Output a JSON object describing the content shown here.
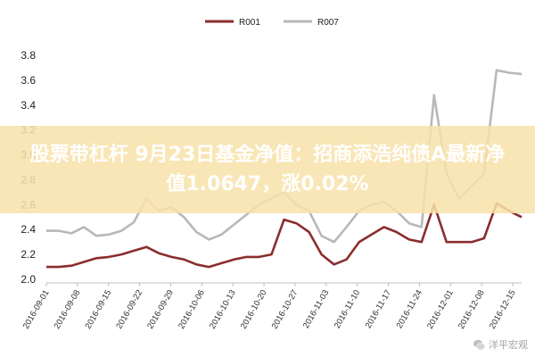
{
  "chart_data": {
    "type": "line",
    "title": "",
    "xlabel": "",
    "ylabel": "",
    "ylim": [
      2.0,
      3.8
    ],
    "yticks": [
      "2.0",
      "2.2",
      "2.4",
      "2.6",
      "2.8",
      "3.0",
      "3.2",
      "3.4",
      "3.6",
      "3.8"
    ],
    "grid": false,
    "legend_position": "top-center",
    "x_tick_labels": [
      "2016-09-01",
      "2016-09-08",
      "2016-09-15",
      "2016-09-22",
      "2016-09-29",
      "2016-10-06",
      "2016-10-13",
      "2016-10-20",
      "2016-10-27",
      "2016-11-03",
      "2016-11-10",
      "2016-11-17",
      "2016-11-24",
      "2016-12-01",
      "2016-12-08",
      "2016-12-15"
    ],
    "x": [
      "09-01",
      "09-04",
      "09-07",
      "09-10",
      "09-13",
      "09-16",
      "09-19",
      "09-22",
      "09-25",
      "09-28",
      "10-01",
      "10-04",
      "10-07",
      "10-10",
      "10-13",
      "10-16",
      "10-19",
      "10-22",
      "10-25",
      "10-28",
      "10-31",
      "11-03",
      "11-06",
      "11-09",
      "11-12",
      "11-15",
      "11-18",
      "11-21",
      "11-24",
      "11-27",
      "11-30",
      "12-01",
      "12-03",
      "12-06",
      "12-09",
      "12-12",
      "12-15",
      "12-18",
      "12-21"
    ],
    "series": [
      {
        "name": "R001",
        "color": "#8b2d2d",
        "values": [
          2.1,
          2.1,
          2.11,
          2.14,
          2.17,
          2.18,
          2.2,
          2.23,
          2.26,
          2.21,
          2.18,
          2.16,
          2.12,
          2.1,
          2.13,
          2.16,
          2.18,
          2.18,
          2.2,
          2.48,
          2.45,
          2.38,
          2.2,
          2.12,
          2.16,
          2.3,
          2.36,
          2.42,
          2.38,
          2.32,
          2.3,
          2.6,
          2.3,
          2.3,
          2.3,
          2.33,
          2.61,
          2.55,
          2.5
        ]
      },
      {
        "name": "R007",
        "color": "#b8b8b8",
        "values": [
          2.39,
          2.39,
          2.37,
          2.42,
          2.35,
          2.36,
          2.39,
          2.46,
          2.65,
          2.55,
          2.58,
          2.5,
          2.38,
          2.32,
          2.36,
          2.44,
          2.52,
          2.6,
          2.65,
          2.7,
          2.6,
          2.55,
          2.35,
          2.3,
          2.42,
          2.55,
          2.6,
          2.62,
          2.55,
          2.45,
          2.42,
          3.48,
          2.85,
          2.65,
          2.75,
          2.85,
          3.68,
          3.66,
          3.65
        ]
      }
    ]
  },
  "banner": {
    "line1": "股票带杠杆 9月23日基金净值：招商添浩纯债A最新净",
    "line2": "值1.0647，涨0.02%"
  },
  "watermark": {
    "text": "洋平宏观",
    "icon": "wechat-icon"
  }
}
